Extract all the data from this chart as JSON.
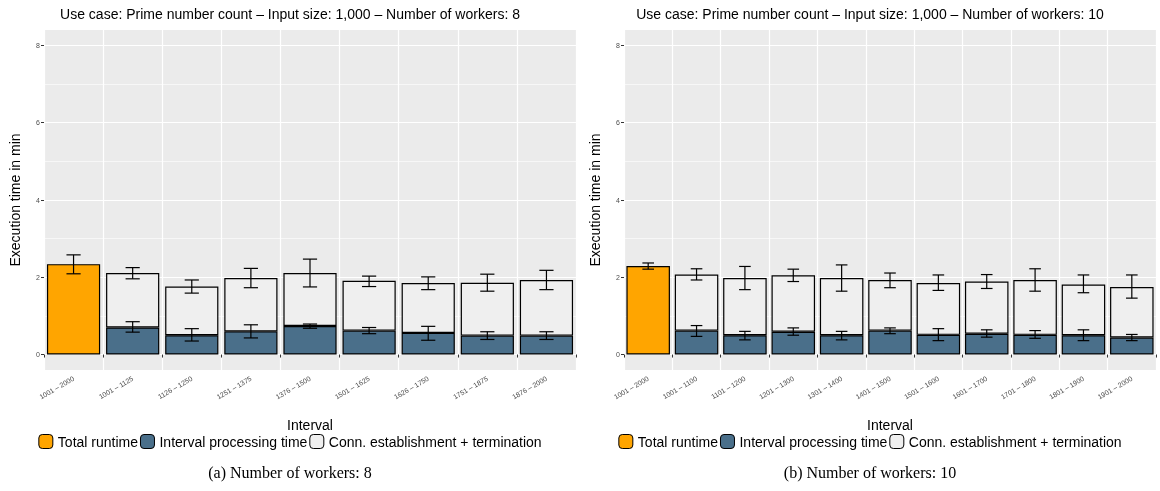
{
  "chart_data": [
    {
      "type": "bar",
      "title": "Use case: Prime number count – Input size: 1,000 – Number of workers: 8",
      "xlabel": "Interval",
      "ylabel": "Execution time in min",
      "categories": [
        "1001 – 2000",
        "1001 – 1125",
        "1126 – 1250",
        "1251 – 1375",
        "1376 – 1500",
        "1501 – 1625",
        "1626 – 1750",
        "1751 – 1875",
        "1876 – 2000"
      ],
      "stacked": true,
      "ylim": [
        -0.4,
        8.4
      ],
      "yticks": [
        0,
        2,
        4,
        6,
        8
      ],
      "grid": true,
      "legend": "bottom",
      "annotations": [
        "(a) Number of workers: 8"
      ],
      "series": [
        {
          "name": "Total runtime",
          "color": "#ffa500",
          "values": [
            2.34,
            null,
            null,
            null,
            null,
            null,
            null,
            null,
            null
          ],
          "errors": [
            [
              2.09,
              2.58
            ],
            null,
            null,
            null,
            null,
            null,
            null,
            null,
            null
          ]
        },
        {
          "name": "Interval processing time",
          "color": "#4a6f8a",
          "values": [
            null,
            0.7,
            0.5,
            0.6,
            0.74,
            0.62,
            0.56,
            0.49,
            0.49
          ],
          "errors": [
            null,
            [
              0.58,
              0.85
            ],
            [
              0.35,
              0.67
            ],
            [
              0.43,
              0.77
            ],
            [
              0.68,
              0.79
            ],
            [
              0.54,
              0.7
            ],
            [
              0.37,
              0.73
            ],
            [
              0.39,
              0.59
            ],
            [
              0.39,
              0.59
            ]
          ]
        },
        {
          "name": "Conn. establishment + termination",
          "color": "#efefef",
          "values": [
            null,
            1.41,
            1.26,
            1.38,
            1.37,
            1.29,
            1.29,
            1.37,
            1.44
          ],
          "errors": [
            null,
            [
              1.96,
              2.25
            ],
            [
              1.59,
              1.93
            ],
            [
              1.73,
              2.23
            ],
            [
              1.75,
              2.47
            ],
            [
              1.76,
              2.03
            ],
            [
              1.68,
              2.01
            ],
            [
              1.64,
              2.08
            ],
            [
              1.68,
              2.18
            ]
          ]
        }
      ]
    },
    {
      "type": "bar",
      "title": "Use case: Prime number count – Input size: 1,000 – Number of workers: 10",
      "xlabel": "Interval",
      "ylabel": "Execution time in min",
      "categories": [
        "1001 – 2000",
        "1001 – 1100",
        "1101 – 1200",
        "1201 – 1300",
        "1301 – 1400",
        "1401 – 1500",
        "1501 – 1600",
        "1601 – 1700",
        "1701 – 1800",
        "1801 – 1900",
        "1901 – 2000"
      ],
      "stacked": true,
      "ylim": [
        -0.4,
        8.4
      ],
      "yticks": [
        0,
        2,
        4,
        6,
        8
      ],
      "grid": true,
      "legend": "bottom",
      "annotations": [
        "(b) Number of workers: 10"
      ],
      "series": [
        {
          "name": "Total runtime",
          "color": "#ffa500",
          "values": [
            2.29,
            null,
            null,
            null,
            null,
            null,
            null,
            null,
            null,
            null,
            null
          ],
          "errors": [
            [
              2.21,
              2.37
            ],
            null,
            null,
            null,
            null,
            null,
            null,
            null,
            null,
            null,
            null
          ]
        },
        {
          "name": "Interval processing time",
          "color": "#4a6f8a",
          "values": [
            null,
            0.62,
            0.5,
            0.59,
            0.5,
            0.62,
            0.51,
            0.54,
            0.51,
            0.5,
            0.44
          ],
          "errors": [
            null,
            [
              0.47,
              0.75
            ],
            [
              0.38,
              0.6
            ],
            [
              0.5,
              0.69
            ],
            [
              0.38,
              0.6
            ],
            [
              0.54,
              0.69
            ],
            [
              0.36,
              0.67
            ],
            [
              0.45,
              0.64
            ],
            [
              0.42,
              0.62
            ],
            [
              0.36,
              0.64
            ],
            [
              0.36,
              0.52
            ]
          ]
        },
        {
          "name": "Conn. establishment + termination",
          "color": "#efefef",
          "values": [
            null,
            1.45,
            1.48,
            1.46,
            1.48,
            1.31,
            1.34,
            1.35,
            1.42,
            1.31,
            1.31
          ],
          "errors": [
            null,
            [
              1.93,
              2.22
            ],
            [
              1.68,
              2.28
            ],
            [
              1.89,
              2.21
            ],
            [
              1.64,
              2.32
            ],
            [
              1.73,
              2.11
            ],
            [
              1.66,
              2.06
            ],
            [
              1.71,
              2.07
            ],
            [
              1.64,
              2.22
            ],
            [
              1.6,
              2.06
            ],
            [
              1.46,
              2.06
            ]
          ]
        }
      ]
    }
  ]
}
